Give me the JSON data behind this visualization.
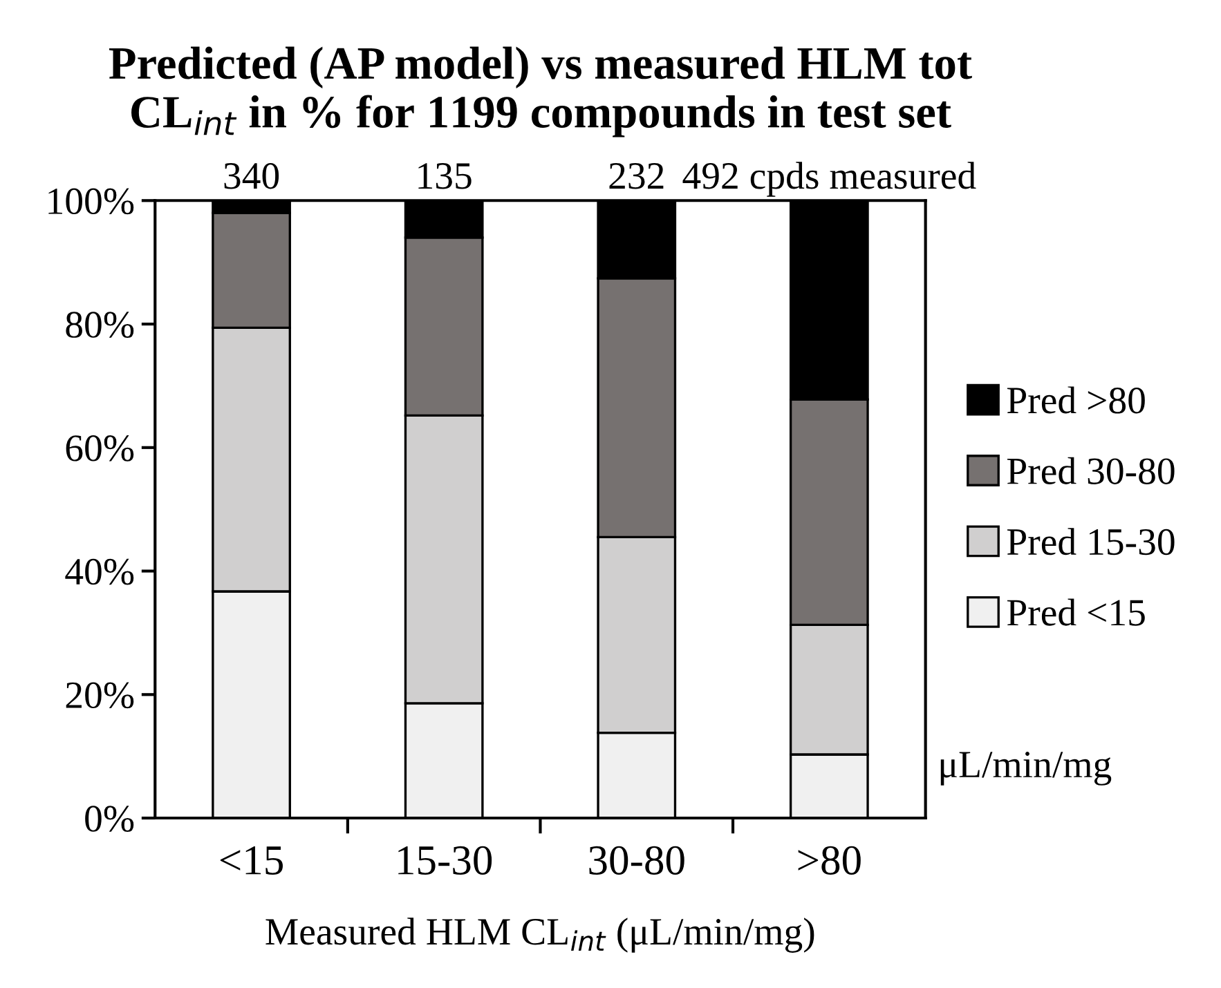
{
  "chart_data": {
    "type": "bar",
    "stacked": true,
    "title": "Predicted (AP model) vs measured HLM tot\nCL$_{int}$ in % for 1199 compounds in test set",
    "xlabel": "Measured HLM CL$_{int}$ (μL/min/mg)",
    "categories": [
      "<15",
      "15-30",
      "30-80",
      ">80"
    ],
    "series": [
      {
        "name": "Pred <15",
        "color": "#f0f0f0",
        "values": [
          36.7,
          18.6,
          13.8,
          10.3
        ]
      },
      {
        "name": "Pred 15-30",
        "color": "#d0cfcf",
        "values": [
          42.7,
          46.6,
          31.7,
          21.0
        ]
      },
      {
        "name": "Pred 30-80",
        "color": "#767170",
        "values": [
          18.6,
          28.8,
          41.9,
          36.5
        ]
      },
      {
        "name": "Pred >80",
        "color": "#000000",
        "values": [
          2.0,
          6.0,
          12.6,
          32.2
        ]
      }
    ],
    "ylim": [
      0,
      100
    ],
    "yticks": [
      {
        "value": 0,
        "label": "0%"
      },
      {
        "value": 20,
        "label": "20%"
      },
      {
        "value": 40,
        "label": "40%"
      },
      {
        "value": 60,
        "label": "60%"
      },
      {
        "value": 80,
        "label": "80%"
      },
      {
        "value": 100,
        "label": "100%"
      }
    ],
    "annotations": [
      {
        "text": "340",
        "x": "<15",
        "y": 100
      },
      {
        "text": "135",
        "x": "15-30",
        "y": 100
      },
      {
        "text": "232",
        "x": "30-80",
        "y": 100
      },
      {
        "text": "492 cpds measured",
        "x": ">80",
        "y": 100
      },
      "μL/min/mg"
    ],
    "legend": "right",
    "grid": false
  }
}
